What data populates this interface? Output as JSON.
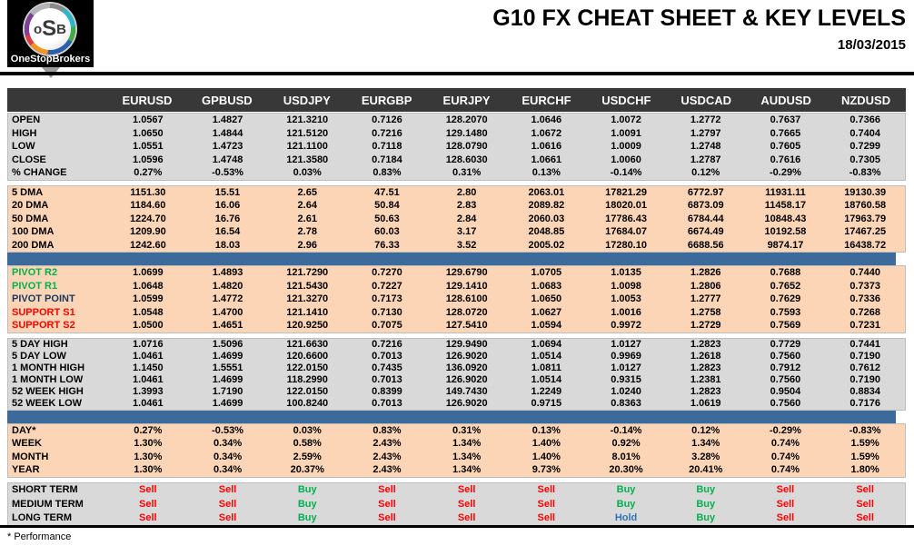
{
  "header": {
    "logo_letters": {
      "o": "o",
      "s": "S",
      "b": "B"
    },
    "logo_word": "OneStopBrokers",
    "title": "G10 FX CHEAT SHEET & KEY LEVELS",
    "date": "18/03/2015"
  },
  "footnote": "* Performance",
  "colors": {
    "header_bg": "#383838",
    "section_gray": "#D9D9D9",
    "section_peach": "#FBD5B5",
    "separator_blue": "#3B6A9B",
    "resistance_green": "#00B050",
    "pivot_navy": "#17375E",
    "support_red": "#FF0000",
    "signal_buy": "#00B050",
    "signal_sell": "#FF0000",
    "signal_hold": "#2E74B5"
  },
  "chart_data": {
    "type": "table",
    "title": "G10 FX CHEAT SHEET & KEY LEVELS",
    "date": "18/03/2015",
    "columns": [
      "EURUSD",
      "GPBUSD",
      "USDJPY",
      "EURGBP",
      "EURJPY",
      "EURCHF",
      "USDCHF",
      "USDCAD",
      "AUDUSD",
      "NZDUSD"
    ],
    "sections": [
      {
        "name": "ohlc",
        "style": "gray",
        "before": "none",
        "rows": [
          {
            "label": "OPEN",
            "values": [
              "1.0567",
              "1.4827",
              "121.3210",
              "0.7126",
              "128.2070",
              "1.0646",
              "1.0072",
              "1.2772",
              "0.7637",
              "0.7366"
            ]
          },
          {
            "label": "HIGH",
            "values": [
              "1.0650",
              "1.4844",
              "121.5120",
              "0.7216",
              "129.1480",
              "1.0672",
              "1.0091",
              "1.2797",
              "0.7665",
              "0.7404"
            ]
          },
          {
            "label": "LOW",
            "values": [
              "1.0551",
              "1.4723",
              "121.1100",
              "0.7118",
              "128.0790",
              "1.0616",
              "1.0009",
              "1.2748",
              "0.7605",
              "0.7299"
            ]
          },
          {
            "label": "CLOSE",
            "values": [
              "1.0596",
              "1.4748",
              "121.3580",
              "0.7184",
              "128.6030",
              "1.0661",
              "1.0060",
              "1.2787",
              "0.7616",
              "0.7305"
            ]
          },
          {
            "label": "% CHANGE",
            "values": [
              "0.27%",
              "-0.53%",
              "0.03%",
              "0.83%",
              "0.31%",
              "0.13%",
              "-0.14%",
              "0.12%",
              "-0.29%",
              "-0.83%"
            ]
          }
        ]
      },
      {
        "name": "dma",
        "style": "peach",
        "before": "gap",
        "rows": [
          {
            "label": "5 DMA",
            "values": [
              "1151.30",
              "15.51",
              "2.65",
              "47.51",
              "2.80",
              "2063.01",
              "17821.29",
              "6772.97",
              "11931.11",
              "19130.39"
            ]
          },
          {
            "label": "20 DMA",
            "values": [
              "1184.60",
              "16.06",
              "2.64",
              "50.84",
              "2.83",
              "2089.82",
              "18020.01",
              "6873.09",
              "11458.17",
              "18760.58"
            ]
          },
          {
            "label": "50 DMA",
            "values": [
              "1224.70",
              "16.76",
              "2.61",
              "50.63",
              "2.84",
              "2060.03",
              "17786.43",
              "6784.44",
              "10848.43",
              "17963.79"
            ]
          },
          {
            "label": "100 DMA",
            "values": [
              "1209.90",
              "16.54",
              "2.78",
              "60.03",
              "3.17",
              "2048.85",
              "17684.07",
              "6674.49",
              "10192.58",
              "17467.25"
            ]
          },
          {
            "label": "200 DMA",
            "values": [
              "1242.60",
              "18.03",
              "2.96",
              "76.33",
              "3.52",
              "2005.02",
              "17280.10",
              "6688.56",
              "9874.17",
              "16438.72"
            ]
          }
        ]
      },
      {
        "name": "pivots",
        "style": "peach",
        "before": "blue",
        "rows": [
          {
            "label": "PIVOT R2",
            "label_color": "resistance_green",
            "values": [
              "1.0699",
              "1.4893",
              "121.7290",
              "0.7270",
              "129.6790",
              "1.0705",
              "1.0135",
              "1.2826",
              "0.7688",
              "0.7440"
            ]
          },
          {
            "label": "PIVOT R1",
            "label_color": "resistance_green",
            "values": [
              "1.0648",
              "1.4820",
              "121.5430",
              "0.7227",
              "129.1410",
              "1.0683",
              "1.0098",
              "1.2806",
              "0.7652",
              "0.7373"
            ]
          },
          {
            "label": "PIVOT POINT",
            "label_color": "pivot_navy",
            "values": [
              "1.0599",
              "1.4772",
              "121.3270",
              "0.7173",
              "128.6100",
              "1.0650",
              "1.0053",
              "1.2777",
              "0.7629",
              "0.7336"
            ]
          },
          {
            "label": "SUPPORT S1",
            "label_color": "support_red",
            "values": [
              "1.0548",
              "1.4700",
              "121.1410",
              "0.7130",
              "128.0720",
              "1.0627",
              "1.0016",
              "1.2758",
              "0.7593",
              "0.7268"
            ]
          },
          {
            "label": "SUPPORT S2",
            "label_color": "support_red",
            "values": [
              "1.0500",
              "1.4651",
              "120.9250",
              "0.7075",
              "127.5410",
              "1.0594",
              "0.9972",
              "1.2729",
              "0.7569",
              "0.7231"
            ]
          }
        ]
      },
      {
        "name": "ranges",
        "style": "gray",
        "before": "gap",
        "rows": [
          {
            "label": "5 DAY HIGH",
            "values": [
              "1.0716",
              "1.5096",
              "121.6630",
              "0.7216",
              "129.9490",
              "1.0694",
              "1.0127",
              "1.2823",
              "0.7729",
              "0.7441"
            ]
          },
          {
            "label": "5 DAY LOW",
            "values": [
              "1.0461",
              "1.4699",
              "120.6600",
              "0.7013",
              "126.9020",
              "1.0514",
              "0.9969",
              "1.2618",
              "0.7560",
              "0.7190"
            ]
          },
          {
            "label": "1 MONTH HIGH",
            "values": [
              "1.1450",
              "1.5551",
              "122.0150",
              "0.7435",
              "136.0920",
              "1.0811",
              "1.0127",
              "1.2823",
              "0.7912",
              "0.7612"
            ]
          },
          {
            "label": "1 MONTH LOW",
            "values": [
              "1.0461",
              "1.4699",
              "118.2990",
              "0.7013",
              "126.9020",
              "1.0514",
              "0.9315",
              "1.2381",
              "0.7560",
              "0.7190"
            ]
          },
          {
            "label": "52 WEEK HIGH",
            "values": [
              "1.3993",
              "1.7190",
              "122.0150",
              "0.8399",
              "149.7430",
              "1.2249",
              "1.0240",
              "1.2823",
              "0.9504",
              "0.8834"
            ]
          },
          {
            "label": "52 WEEK LOW",
            "values": [
              "1.0461",
              "1.4699",
              "100.8240",
              "0.7013",
              "126.9020",
              "0.9715",
              "0.8363",
              "1.0619",
              "0.7560",
              "0.7176"
            ]
          }
        ]
      },
      {
        "name": "performance",
        "style": "peach",
        "before": "blue",
        "rows": [
          {
            "label": "DAY*",
            "values": [
              "0.27%",
              "-0.53%",
              "0.03%",
              "0.83%",
              "0.31%",
              "0.13%",
              "-0.14%",
              "0.12%",
              "-0.29%",
              "-0.83%"
            ]
          },
          {
            "label": "WEEK",
            "values": [
              "1.30%",
              "0.34%",
              "0.58%",
              "2.43%",
              "1.34%",
              "1.40%",
              "0.92%",
              "1.34%",
              "0.74%",
              "1.59%"
            ]
          },
          {
            "label": "MONTH",
            "values": [
              "1.30%",
              "0.34%",
              "2.59%",
              "2.43%",
              "1.34%",
              "1.40%",
              "8.01%",
              "3.28%",
              "0.74%",
              "1.59%"
            ]
          },
          {
            "label": "YEAR",
            "values": [
              "1.30%",
              "0.34%",
              "20.37%",
              "2.43%",
              "1.34%",
              "9.73%",
              "20.30%",
              "20.41%",
              "0.74%",
              "1.80%"
            ]
          }
        ]
      },
      {
        "name": "signals",
        "style": "gray",
        "before": "gap",
        "colored_values": true,
        "rows": [
          {
            "label": "SHORT TERM",
            "values": [
              "Sell",
              "Sell",
              "Buy",
              "Sell",
              "Sell",
              "Sell",
              "Buy",
              "Buy",
              "Sell",
              "Sell"
            ]
          },
          {
            "label": "MEDIUM TERM",
            "values": [
              "Sell",
              "Sell",
              "Buy",
              "Sell",
              "Sell",
              "Sell",
              "Buy",
              "Buy",
              "Sell",
              "Sell"
            ]
          },
          {
            "label": "LONG TERM",
            "values": [
              "Sell",
              "Sell",
              "Buy",
              "Sell",
              "Sell",
              "Sell",
              "Hold",
              "Buy",
              "Sell",
              "Sell"
            ]
          }
        ]
      }
    ],
    "footnote": "* Performance"
  }
}
